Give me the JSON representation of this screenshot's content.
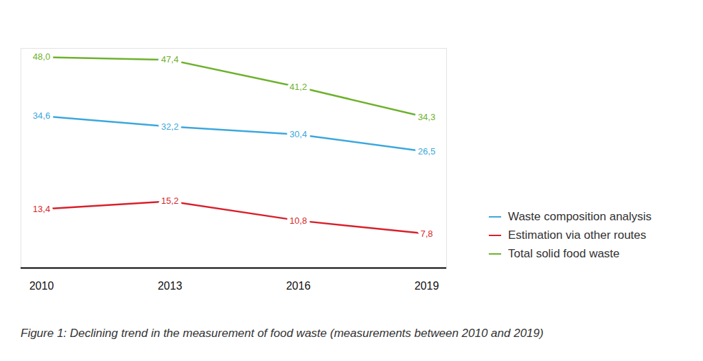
{
  "chart_data": {
    "type": "line",
    "title": "Figure 1: Declining trend in the measurement of food waste (measurements between 2010 and 2019)",
    "categories": [
      "2010",
      "2013",
      "2016",
      "2019"
    ],
    "series": [
      {
        "name": "Waste composition analysis",
        "color": "#3ba7dc",
        "values": [
          34.6,
          32.2,
          30.4,
          26.5
        ],
        "value_labels": [
          "34,6",
          "32,2",
          "30,4",
          "26,5"
        ]
      },
      {
        "name": "Estimation via other routes",
        "color": "#d81f2a",
        "values": [
          13.4,
          15.2,
          10.8,
          7.8
        ],
        "value_labels": [
          "13,4",
          "15,2",
          "10,8",
          "7,8"
        ]
      },
      {
        "name": "Total solid food waste",
        "color": "#6cb12a",
        "values": [
          48.0,
          47.4,
          41.2,
          34.3
        ],
        "value_labels": [
          "48,0",
          "47,4",
          "41,2",
          "34,3"
        ]
      }
    ],
    "ylim": [
      0,
      50
    ],
    "tick_labels": "x",
    "data_labels": true,
    "legend": "right",
    "grid": false
  }
}
